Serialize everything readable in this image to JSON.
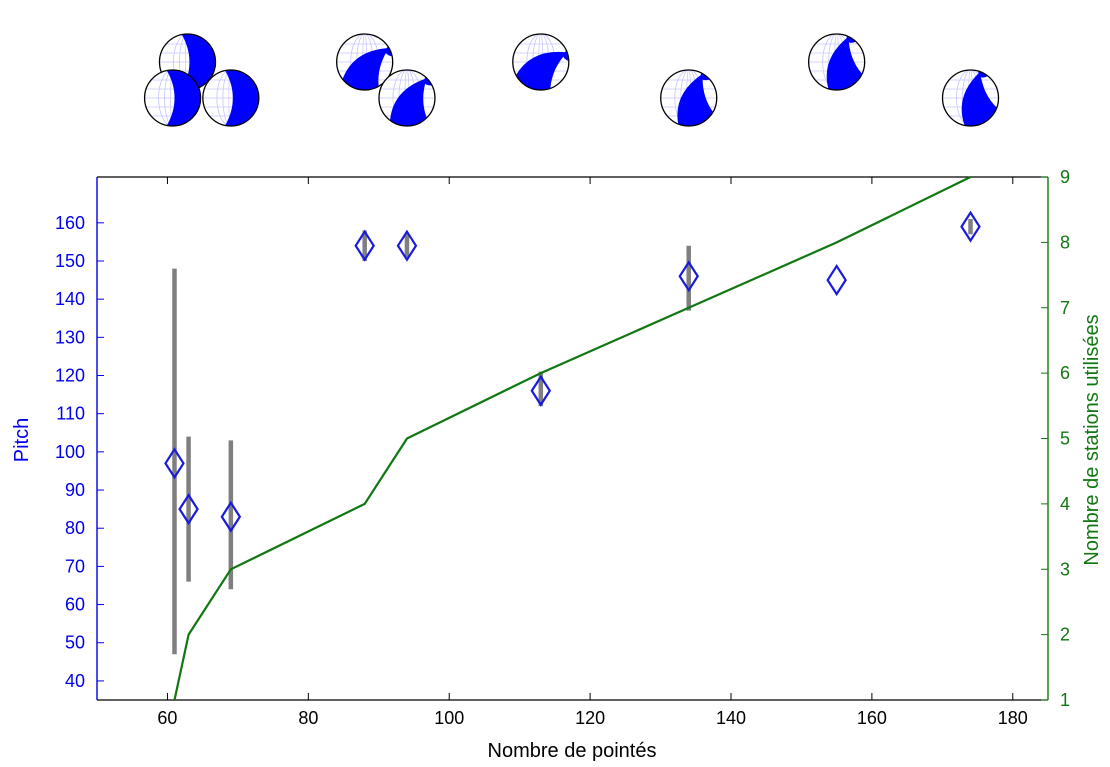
{
  "chart_data": {
    "type": "scatter",
    "xlabel": "Nombre de pointés",
    "ylabel_left": "Pitch",
    "ylabel_right": "Nombre de stations utilisées",
    "xlim": [
      50,
      185
    ],
    "ylim_left": [
      35,
      172
    ],
    "ylim_right": [
      1,
      9
    ],
    "x_ticks": [
      60,
      80,
      100,
      120,
      140,
      160,
      180
    ],
    "y_ticks_left": [
      40,
      50,
      60,
      70,
      80,
      90,
      100,
      110,
      120,
      130,
      140,
      150,
      160
    ],
    "y_ticks_right": [
      1,
      2,
      3,
      4,
      5,
      6,
      7,
      8,
      9
    ],
    "grid": false,
    "colors": {
      "pitch_axis": "#0000ee",
      "stations_axis": "#117711",
      "marker": "#1a1adb",
      "errorbar": "#7f7f7f",
      "beachball_fill": "#0000ff"
    },
    "pitch_points": [
      {
        "x": 61,
        "y": 97,
        "low": 47,
        "high": 148
      },
      {
        "x": 63,
        "y": 85,
        "low": 66,
        "high": 104
      },
      {
        "x": 69,
        "y": 83,
        "low": 64,
        "high": 103
      },
      {
        "x": 88,
        "y": 154,
        "low": 150,
        "high": 158
      },
      {
        "x": 94,
        "y": 154,
        "low": 151,
        "high": 157
      },
      {
        "x": 113,
        "y": 116,
        "low": 112,
        "high": 121
      },
      {
        "x": 134,
        "y": 146,
        "low": 137,
        "high": 154
      },
      {
        "x": 155,
        "y": 145,
        "low": 145,
        "high": 145
      },
      {
        "x": 174,
        "y": 159,
        "low": 157,
        "high": 161
      }
    ],
    "stations_line": {
      "x": [
        61,
        63,
        69,
        88,
        94,
        113,
        134,
        155,
        174
      ],
      "y": [
        1,
        2,
        3,
        4,
        5,
        6,
        7,
        8,
        9
      ]
    },
    "focal_mechanisms": [
      {
        "icon": "beachball-icon",
        "x": 61,
        "strike_angle": 90,
        "pattern": "vertical-band"
      },
      {
        "icon": "beachball-icon",
        "x": 63,
        "strike_angle": 90,
        "pattern": "vertical-band"
      },
      {
        "icon": "beachball-icon",
        "x": 69,
        "strike_angle": 90,
        "pattern": "vertical-band"
      },
      {
        "icon": "beachball-icon",
        "x": 88,
        "strike_angle": 60,
        "pattern": "oblique"
      },
      {
        "icon": "beachball-icon",
        "x": 94,
        "strike_angle": 45,
        "pattern": "oblique"
      },
      {
        "icon": "beachball-icon",
        "x": 113,
        "strike_angle": 70,
        "pattern": "oblique"
      },
      {
        "icon": "beachball-icon",
        "x": 134,
        "strike_angle": 30,
        "pattern": "oblique"
      },
      {
        "icon": "beachball-icon",
        "x": 155,
        "strike_angle": 25,
        "pattern": "oblique"
      },
      {
        "icon": "beachball-icon",
        "x": 174,
        "strike_angle": 20,
        "pattern": "oblique"
      }
    ]
  }
}
